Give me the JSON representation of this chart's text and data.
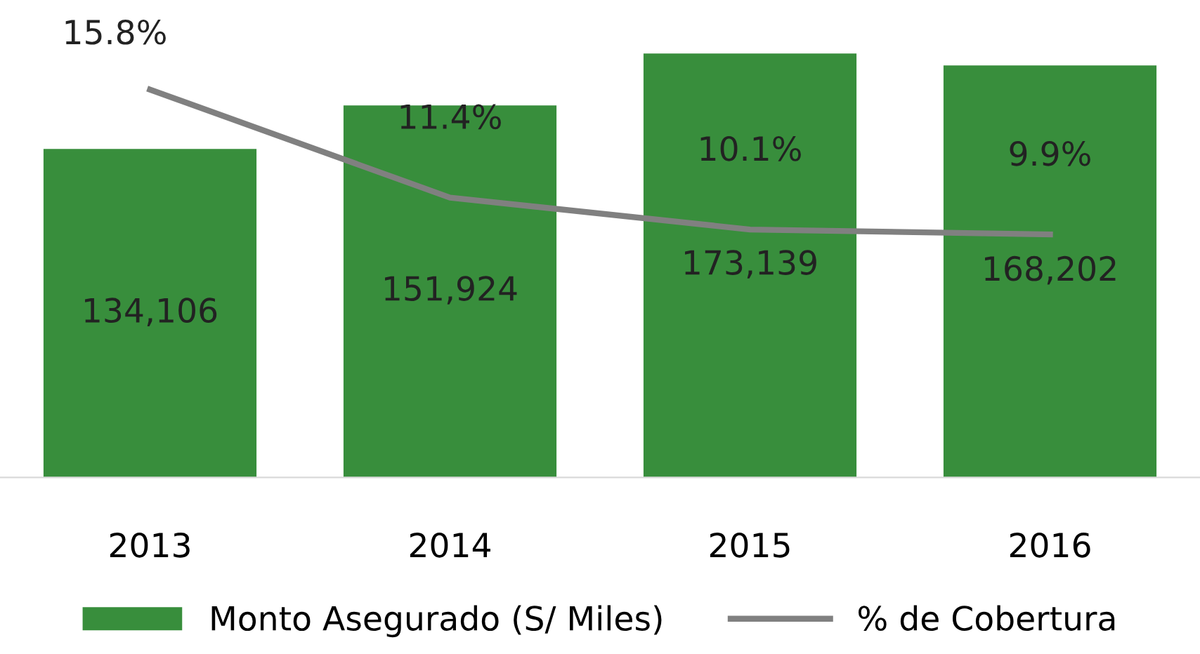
{
  "chart_data": {
    "type": "bar",
    "categories": [
      "2013",
      "2014",
      "2015",
      "2016"
    ],
    "series": [
      {
        "name": "Monto Asegurado (S/ Miles)",
        "color": "#388e3c",
        "values": [
          134106,
          151924,
          173139,
          168202
        ],
        "value_labels": [
          "134,106",
          "151,924",
          "173,139",
          "168,202"
        ]
      },
      {
        "name": "% de Cobertura",
        "type": "line",
        "axis": "y2",
        "color": "#808080",
        "values": [
          15.8,
          11.4,
          10.1,
          9.9
        ],
        "value_labels": [
          "15.8%",
          "11.4%",
          "10.1%",
          "9.9%"
        ]
      }
    ],
    "tick_labels": "x",
    "grid": false,
    "legend": "bottom",
    "marker": "none",
    "line_style": "solid"
  }
}
